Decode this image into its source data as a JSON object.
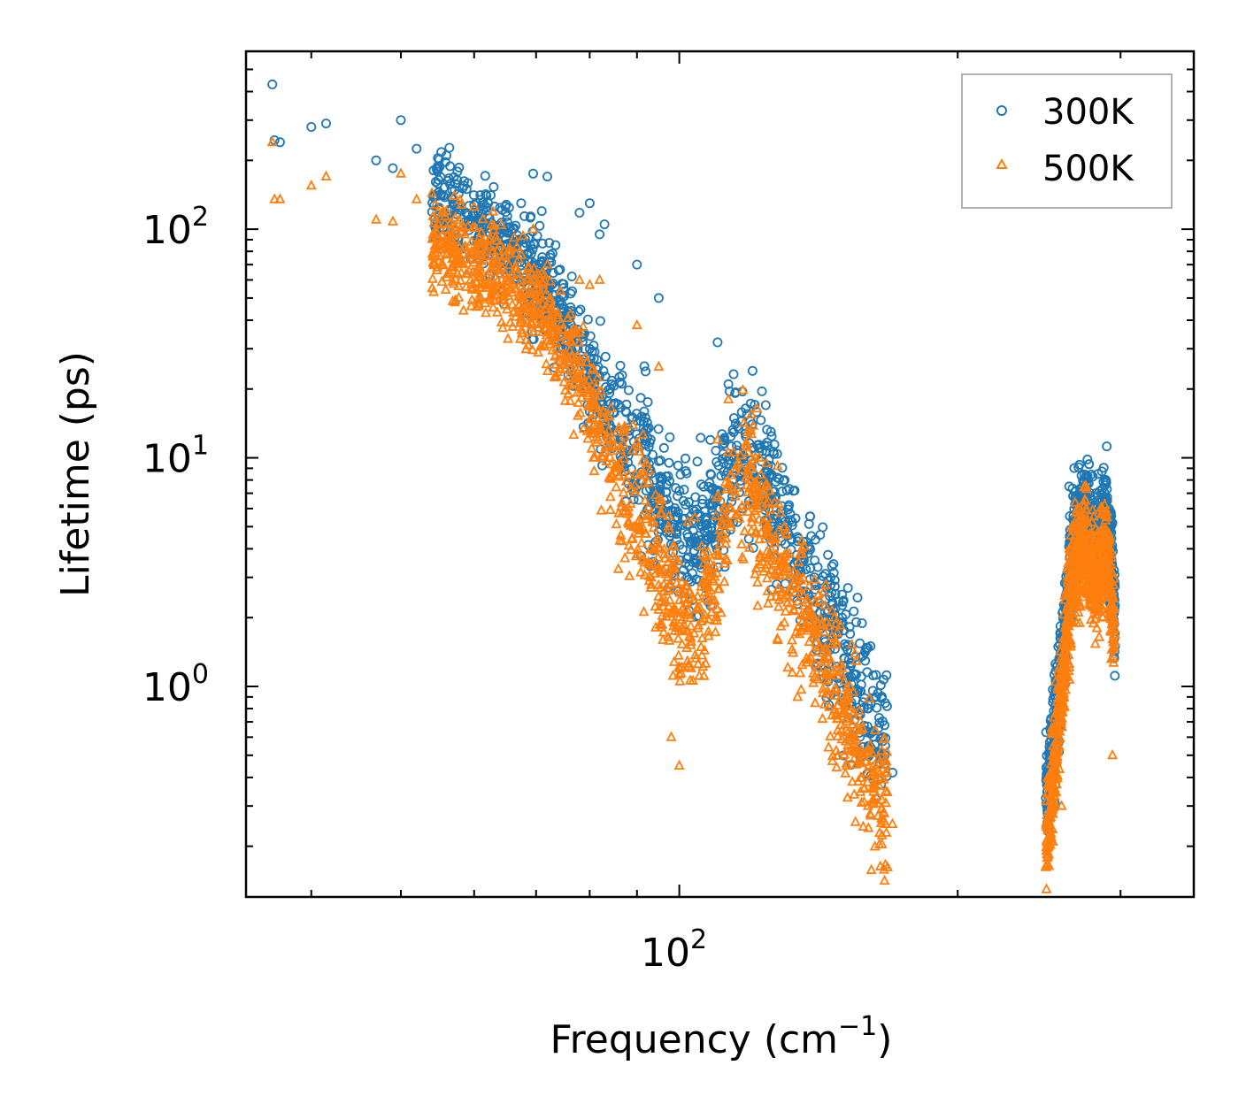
{
  "chart_data": {
    "type": "scatter",
    "title": "",
    "xlabel": "Frequency (cm",
    "xlabel_sup": "−1",
    "xlabel_end": ")",
    "ylabel": "Lifetime (ps)",
    "xscale": "log",
    "yscale": "log",
    "xlim": [
      34,
      360
    ],
    "ylim": [
      0.12,
      600
    ],
    "x_ticks": [
      {
        "value": 100,
        "base": "10",
        "exp": "2"
      }
    ],
    "y_ticks": [
      {
        "value": 1,
        "base": "10",
        "exp": "0"
      },
      {
        "value": 10,
        "base": "10",
        "exp": "1"
      },
      {
        "value": 100,
        "base": "10",
        "exp": "2"
      }
    ],
    "legend_position": "top-right",
    "series": [
      {
        "name": "300K",
        "color": "#1f77b4",
        "marker": "circle",
        "trend": [
          [
            36,
            300
          ],
          [
            42,
            230
          ],
          [
            50,
            170
          ],
          [
            58,
            120
          ],
          [
            65,
            85
          ],
          [
            72,
            55
          ],
          [
            78,
            30
          ],
          [
            85,
            15
          ],
          [
            92,
            9
          ],
          [
            98,
            5
          ],
          [
            104,
            4
          ],
          [
            108,
            5
          ],
          [
            113,
            9
          ],
          [
            118,
            12
          ],
          [
            124,
            8
          ],
          [
            130,
            5
          ],
          [
            138,
            3
          ],
          [
            146,
            1.8
          ],
          [
            155,
            1.1
          ],
          [
            163,
            0.7
          ],
          [
            168,
            0.5
          ],
          [
            250,
            0.35
          ],
          [
            258,
            1
          ],
          [
            266,
            4
          ],
          [
            274,
            6
          ],
          [
            282,
            4
          ],
          [
            290,
            6
          ],
          [
            296,
            2
          ]
        ],
        "points": [
          [
            36.3,
            430
          ],
          [
            36.5,
            245
          ],
          [
            37,
            240
          ],
          [
            40,
            280
          ],
          [
            41.5,
            290
          ],
          [
            47,
            200
          ],
          [
            49,
            185
          ],
          [
            50,
            300
          ],
          [
            52,
            225
          ],
          [
            56,
            210
          ],
          [
            57,
            130
          ],
          [
            58.5,
            155
          ],
          [
            59.5,
            105
          ],
          [
            60,
            128
          ],
          [
            63,
            90
          ],
          [
            65,
            128
          ],
          [
            67.5,
            90
          ],
          [
            69.5,
            175
          ],
          [
            71,
            120
          ],
          [
            72,
            170
          ],
          [
            78,
            118
          ],
          [
            80,
            130
          ],
          [
            82,
            95
          ],
          [
            83,
            105
          ],
          [
            90,
            70
          ],
          [
            95,
            50
          ],
          [
            110,
            32
          ],
          [
            113,
            21
          ],
          [
            120,
            24
          ],
          [
            124,
            17
          ],
          [
            130,
            8
          ],
          [
            140,
            3
          ],
          [
            150,
            2
          ],
          [
            160,
            0.8
          ],
          [
            167,
            0.55
          ],
          [
            170,
            0.42
          ],
          [
            251,
            0.37
          ],
          [
            259,
            1.1
          ],
          [
            264,
            7.5
          ],
          [
            269,
            5
          ],
          [
            275,
            6.5
          ],
          [
            282,
            7
          ],
          [
            287,
            3
          ],
          [
            294,
            3
          ]
        ]
      },
      {
        "name": "500K",
        "color": "#ff7f0e",
        "marker": "triangle",
        "trend": [
          [
            36,
            150
          ],
          [
            42,
            140
          ],
          [
            50,
            110
          ],
          [
            58,
            75
          ],
          [
            65,
            60
          ],
          [
            72,
            40
          ],
          [
            78,
            22
          ],
          [
            85,
            9
          ],
          [
            92,
            5
          ],
          [
            98,
            2.5
          ],
          [
            104,
            2
          ],
          [
            108,
            2.5
          ],
          [
            113,
            6
          ],
          [
            118,
            8
          ],
          [
            124,
            5
          ],
          [
            130,
            3
          ],
          [
            138,
            2
          ],
          [
            146,
            1.1
          ],
          [
            155,
            0.6
          ],
          [
            163,
            0.35
          ],
          [
            168,
            0.28
          ],
          [
            250,
            0.22
          ],
          [
            258,
            0.8
          ],
          [
            266,
            3
          ],
          [
            274,
            4
          ],
          [
            282,
            2.8
          ],
          [
            290,
            4
          ],
          [
            296,
            1.5
          ]
        ],
        "points": [
          [
            36.3,
            240
          ],
          [
            36.5,
            135
          ],
          [
            37,
            135
          ],
          [
            40,
            155
          ],
          [
            41.5,
            170
          ],
          [
            47,
            110
          ],
          [
            49,
            108
          ],
          [
            50,
            175
          ],
          [
            52,
            135
          ],
          [
            56,
            120
          ],
          [
            57,
            75
          ],
          [
            58.5,
            83
          ],
          [
            59.5,
            60
          ],
          [
            60,
            77
          ],
          [
            63,
            49
          ],
          [
            65,
            77
          ],
          [
            67.5,
            77
          ],
          [
            69.5,
            100
          ],
          [
            71,
            64
          ],
          [
            72,
            70
          ],
          [
            78,
            60
          ],
          [
            80,
            57
          ],
          [
            82,
            60
          ],
          [
            90,
            38
          ],
          [
            95,
            25
          ],
          [
            98,
            0.6
          ],
          [
            100,
            0.45
          ],
          [
            110,
            12
          ],
          [
            113,
            18
          ],
          [
            120,
            9
          ],
          [
            130,
            5
          ],
          [
            140,
            2
          ],
          [
            150,
            1.2
          ],
          [
            160,
            0.3
          ],
          [
            167,
            0.25
          ],
          [
            170,
            0.25
          ],
          [
            251,
            0.2
          ],
          [
            259,
            0.3
          ],
          [
            264,
            4
          ],
          [
            269,
            2.5
          ],
          [
            275,
            3.5
          ],
          [
            282,
            4.5
          ],
          [
            287,
            2
          ],
          [
            294,
            0.5
          ]
        ]
      }
    ]
  }
}
